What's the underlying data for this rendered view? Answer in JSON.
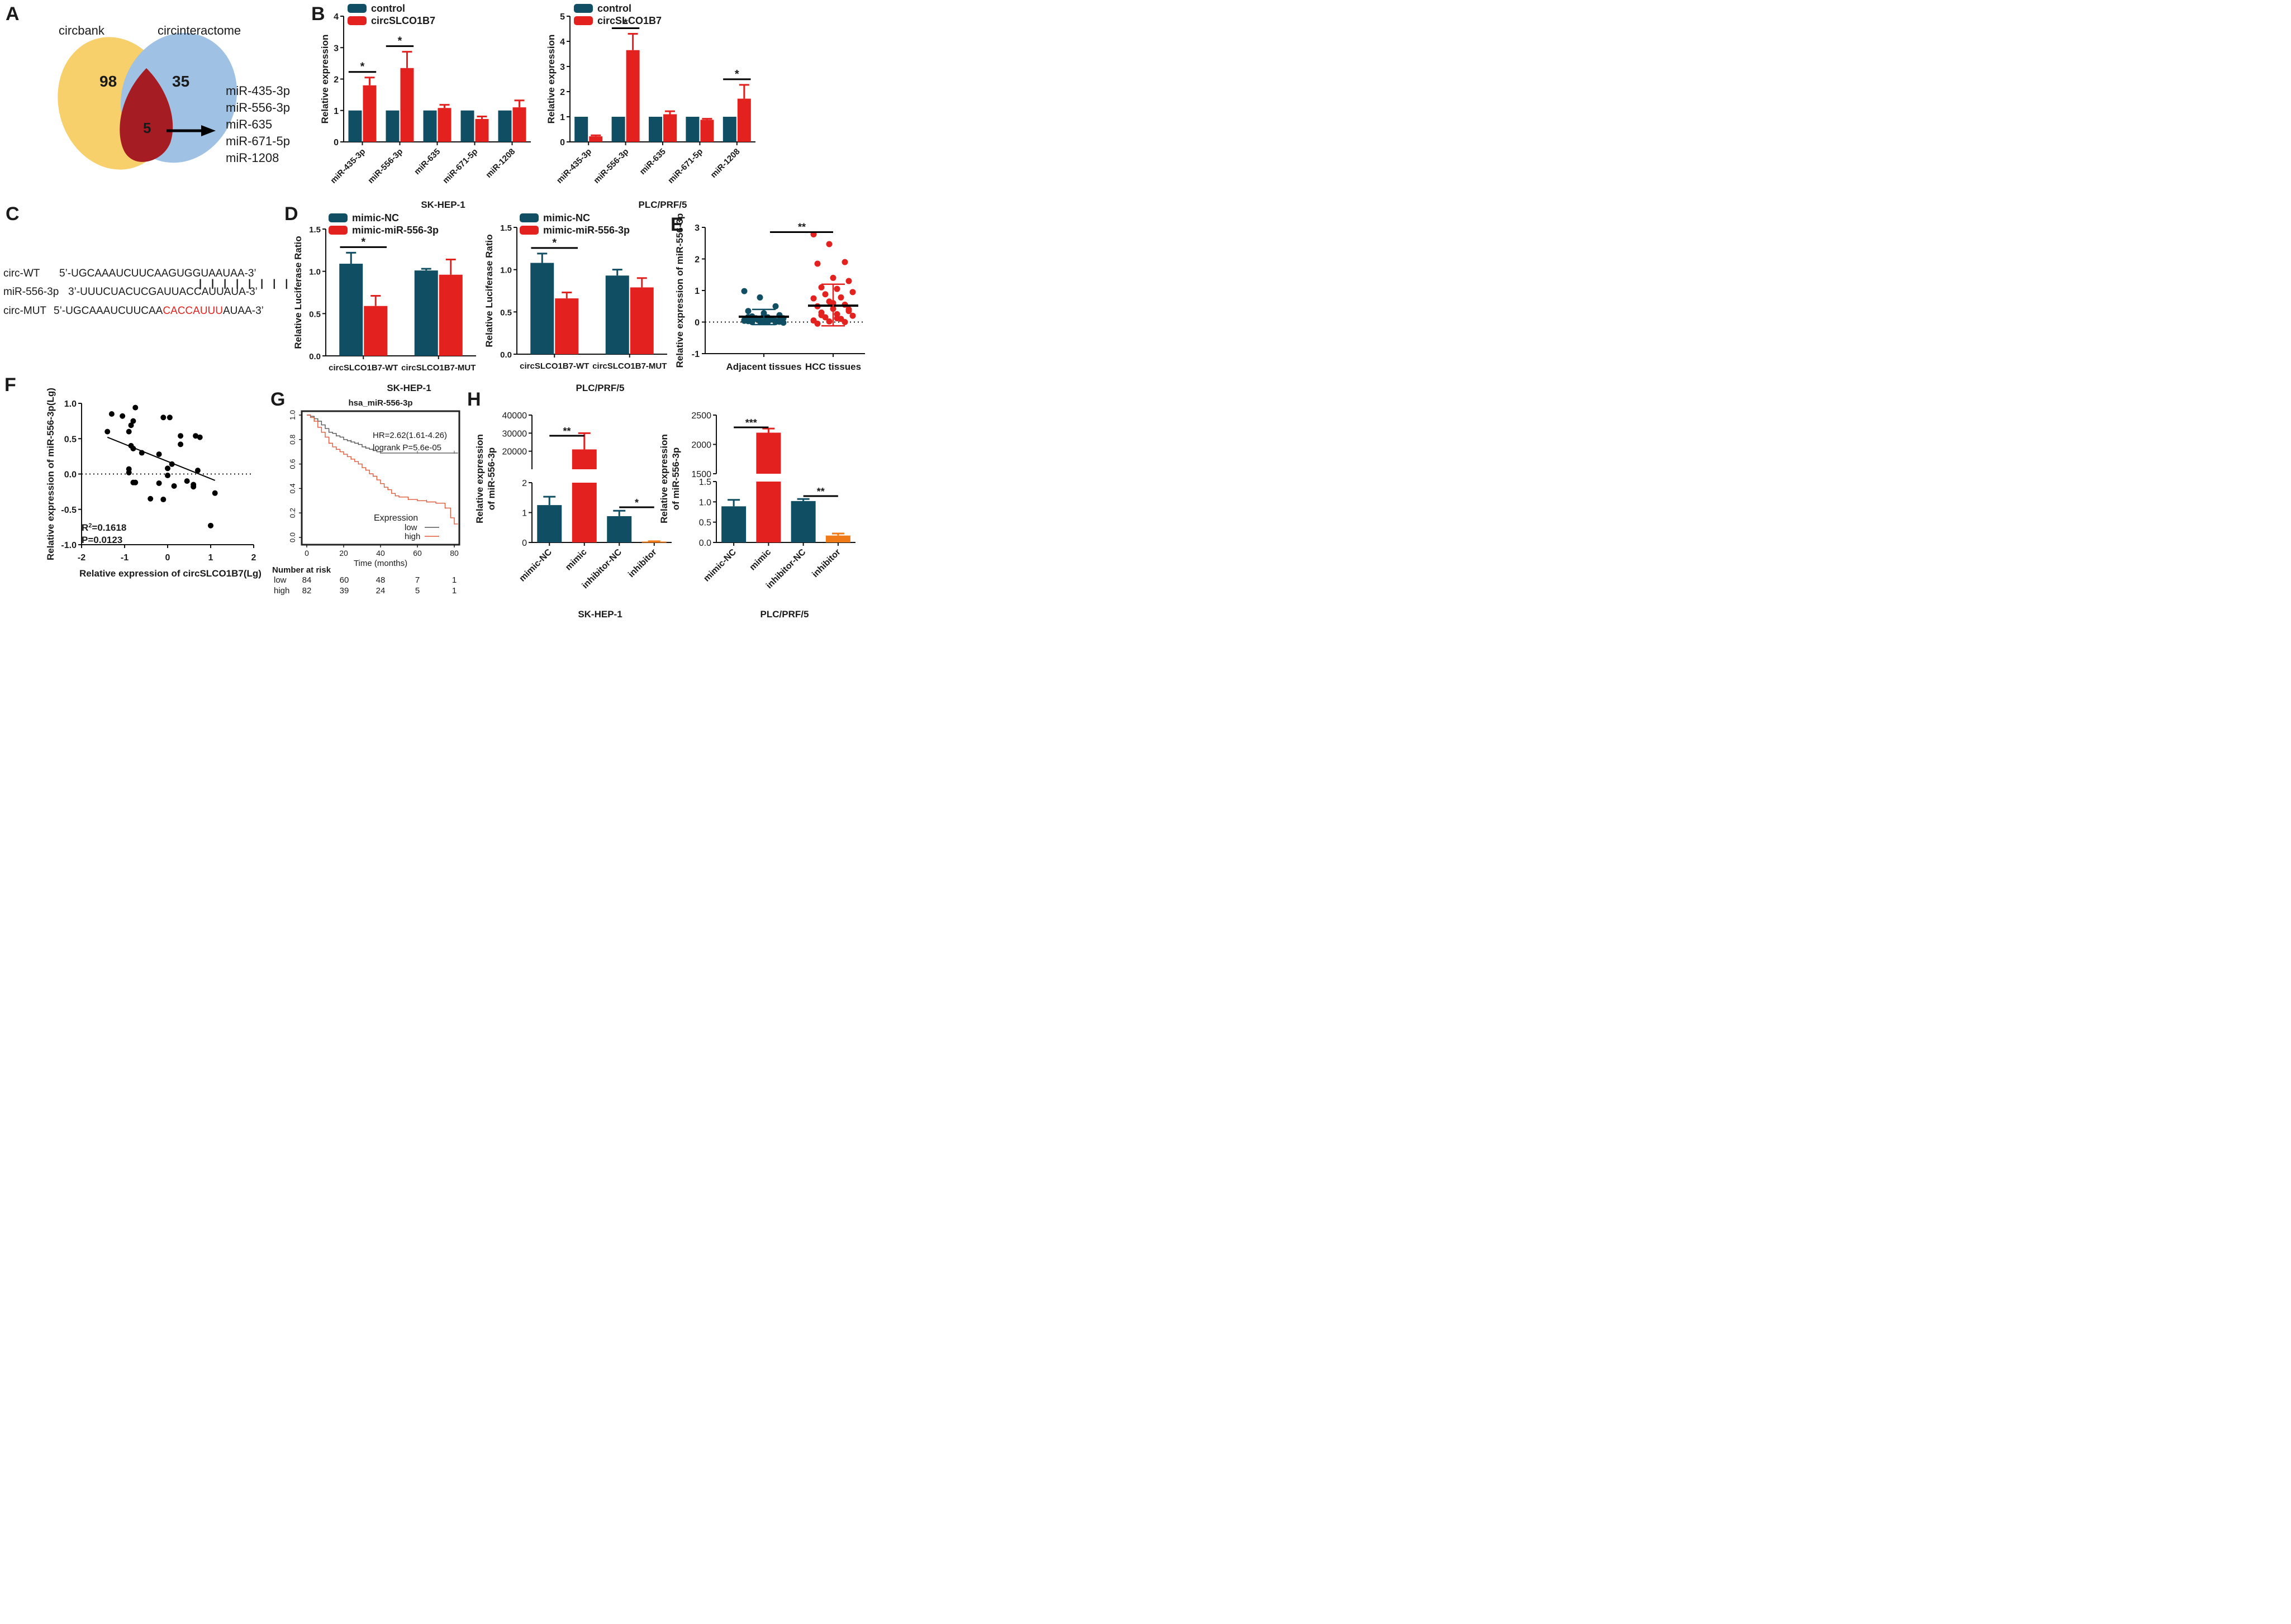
{
  "colors": {
    "teal": "#0f4e63",
    "red": "#e3221f",
    "orange": "#ef7a17",
    "venn_yellow": "#f7cf6b",
    "venn_blue": "#9fc1e3",
    "venn_dark_red": "#a61c23",
    "km_low": "#555555",
    "km_high": "#e0593a",
    "risk_high_text": "#d4621f"
  },
  "panels": {
    "A": {
      "letter": "A",
      "set_left": "circbank",
      "set_right": "circinteractome",
      "count_left": "98",
      "count_right": "35",
      "count_overlap": "5",
      "mirnas": [
        "miR-435-3p",
        "miR-556-3p",
        "miR-635",
        "miR-671-5p",
        "miR-1208"
      ]
    },
    "B": {
      "letter": "B"
    },
    "C": {
      "letter": "C",
      "rows": [
        {
          "label": "circ-WT",
          "seq": "5’-UGCAAAUCUUCAAGUGGUAAUAA-3’"
        },
        {
          "label": "miR-556-3p",
          "seq": "3’-UUUCUACUCGAUUACCAUUAUA-3’"
        },
        {
          "label": "circ-MUT",
          "seq_pre": "5’-UGCAAAUCUUCAA",
          "seq_mut": "CACCAUUU",
          "seq_post": "AUAA-3’"
        }
      ],
      "pairing_marks": "| | | | | | | |"
    },
    "D": {
      "letter": "D"
    },
    "E": {
      "letter": "E"
    },
    "F": {
      "letter": "F",
      "r2_label": "R",
      "r2_sup": "2",
      "r2_value": "=0.1618",
      "p_text": "P=0.0123"
    },
    "G": {
      "letter": "G",
      "hr_text": "HR=2.62(1.61-4.26)",
      "logrank_text": "logrank P=5.6e-05",
      "legend_title": "Expression",
      "legend_low": "low",
      "legend_high": "high",
      "risk_title": "Number at risk",
      "risk_rows": [
        {
          "label": "low",
          "values": [
            "84",
            "60",
            "48",
            "7",
            "1"
          ]
        },
        {
          "label": "high",
          "values": [
            "82",
            "39",
            "24",
            "5",
            "1"
          ]
        }
      ]
    },
    "H": {
      "letter": "H"
    }
  },
  "chart_data": [
    {
      "id": "B-left",
      "type": "bar",
      "title": "SK-HEP-1",
      "xlabel": "",
      "ylabel": "Relative expression",
      "categories": [
        "miR-435-3p",
        "miR-556-3p",
        "miR-635",
        "miR-671-5p",
        "miR-1208"
      ],
      "ylim": [
        0,
        4
      ],
      "yticks": [
        "0",
        "1",
        "2",
        "3",
        "4"
      ],
      "legend": [
        "control",
        "circSLCO1B7"
      ],
      "series": [
        {
          "name": "control",
          "values": [
            1,
            1,
            1,
            1,
            1
          ],
          "errors": [
            0,
            0,
            0,
            0,
            0
          ]
        },
        {
          "name": "circSLCO1B7",
          "values": [
            1.8,
            2.35,
            1.08,
            0.73,
            1.1
          ],
          "errors": [
            0.25,
            0.52,
            0.1,
            0.08,
            0.22
          ]
        }
      ],
      "significance": [
        {
          "label": "*",
          "category": 0
        },
        {
          "label": "*",
          "category": 1
        }
      ]
    },
    {
      "id": "B-right",
      "type": "bar",
      "title": "PLC/PRF/5",
      "xlabel": "",
      "ylabel": "Relative expression",
      "categories": [
        "miR-435-3p",
        "miR-556-3p",
        "miR-635",
        "miR-671-5p",
        "miR-1208"
      ],
      "ylim": [
        0,
        5
      ],
      "yticks": [
        "0",
        "1",
        "2",
        "3",
        "4",
        "5"
      ],
      "legend": [
        "control",
        "circSLCO1B7"
      ],
      "series": [
        {
          "name": "control",
          "values": [
            1,
            1,
            1,
            1,
            1
          ],
          "errors": [
            0,
            0,
            0,
            0,
            0
          ]
        },
        {
          "name": "circSLCO1B7",
          "values": [
            0.22,
            3.65,
            1.1,
            0.88,
            1.72
          ],
          "errors": [
            0.04,
            0.65,
            0.12,
            0.04,
            0.55
          ]
        }
      ],
      "significance": [
        {
          "label": "*",
          "category": 1
        },
        {
          "label": "*",
          "category": 4
        }
      ]
    },
    {
      "id": "D-left",
      "type": "bar",
      "title": "SK-HEP-1",
      "xlabel": "",
      "ylabel": "Relative Luciferase Ratio",
      "categories": [
        "circSLCO1B7-WT",
        "circSLCO1B7-MUT"
      ],
      "ylim": [
        0,
        1.5
      ],
      "yticks": [
        "0.0",
        "0.5",
        "1.0",
        "1.5"
      ],
      "legend": [
        "mimic-NC",
        "mimic-miR-556-3p"
      ],
      "series": [
        {
          "name": "mimic-NC",
          "values": [
            1.09,
            1.01
          ],
          "errors": [
            0.13,
            0.02
          ]
        },
        {
          "name": "mimic-miR-556-3p",
          "values": [
            0.59,
            0.96
          ],
          "errors": [
            0.12,
            0.18
          ]
        }
      ],
      "significance": [
        {
          "label": "*",
          "category": 0
        }
      ]
    },
    {
      "id": "D-right",
      "type": "bar",
      "title": "PLC/PRF/5",
      "xlabel": "",
      "ylabel": "Relative Luciferase Ratio",
      "categories": [
        "circSLCO1B7-WT",
        "circSLCO1B7-MUT"
      ],
      "ylim": [
        0,
        1.5
      ],
      "yticks": [
        "0.0",
        "0.5",
        "1.0",
        "1.5"
      ],
      "legend": [
        "mimic-NC",
        "mimic-miR-556-3p"
      ],
      "series": [
        {
          "name": "mimic-NC",
          "values": [
            1.08,
            0.93
          ],
          "errors": [
            0.11,
            0.07
          ]
        },
        {
          "name": "mimic-miR-556-3p",
          "values": [
            0.66,
            0.79
          ],
          "errors": [
            0.07,
            0.11
          ]
        }
      ],
      "significance": [
        {
          "label": "*",
          "category": 0
        }
      ]
    },
    {
      "id": "E",
      "type": "scatter",
      "xlabel": "",
      "ylabel": "Relative expression of miR-556-3p",
      "categories": [
        "Adjacent tissues",
        "HCC tissues"
      ],
      "ylim": [
        -1,
        3
      ],
      "yticks": [
        "-1",
        "0",
        "1",
        "2",
        "3"
      ],
      "groups": [
        {
          "name": "Adjacent tissues",
          "mean": 0.17,
          "sd_upper": 0.4,
          "sd_lower": -0.08,
          "values": [
            0.98,
            0.78,
            0.5,
            0.35,
            0.28,
            0.22,
            0.18,
            0.15,
            0.12,
            0.1,
            0.08,
            0.06,
            0.05,
            0.04,
            0.03,
            0.02,
            0.01,
            0.0,
            0.0,
            -0.02,
            0.12,
            0.08,
            0.04,
            0.02,
            0.0,
            0.16,
            0.2,
            0.06,
            0.03,
            0.01
          ]
        },
        {
          "name": "HCC tissues",
          "mean": 0.52,
          "sd_upper": 1.2,
          "sd_lower": -0.12,
          "values": [
            2.78,
            2.47,
            1.9,
            1.85,
            1.4,
            1.3,
            1.1,
            1.05,
            0.95,
            0.88,
            0.78,
            0.75,
            0.65,
            0.55,
            0.5,
            0.42,
            0.35,
            0.3,
            0.25,
            0.2,
            0.15,
            0.1,
            0.05,
            0.02,
            0.0,
            -0.05,
            0.6,
            0.4,
            0.22,
            0.12
          ]
        }
      ],
      "significance": [
        {
          "label": "**"
        }
      ]
    },
    {
      "id": "F",
      "type": "scatter",
      "xlabel": "Relative expression of circSLCO1B7(Lg)",
      "ylabel": "Relative expression of miR-556-3p(Lg)",
      "xlim": [
        -2,
        2
      ],
      "ylim": [
        -1,
        1
      ],
      "xticks": [
        "-2",
        "-1",
        "0",
        "1",
        "2"
      ],
      "yticks": [
        "-1.0",
        "-0.5",
        "0.0",
        "0.5",
        "1.0"
      ],
      "points": [
        [
          -1.4,
          0.6
        ],
        [
          -1.3,
          0.85
        ],
        [
          -1.05,
          0.82
        ],
        [
          -0.9,
          0.6
        ],
        [
          -0.85,
          0.69
        ],
        [
          -0.8,
          0.75
        ],
        [
          -0.75,
          0.94
        ],
        [
          -0.85,
          0.4
        ],
        [
          -0.8,
          0.36
        ],
        [
          -0.6,
          0.3
        ],
        [
          -0.9,
          0.07
        ],
        [
          -0.9,
          0.02
        ],
        [
          -0.8,
          -0.12
        ],
        [
          -0.75,
          -0.12
        ],
        [
          -0.4,
          -0.35
        ],
        [
          -0.2,
          0.28
        ],
        [
          -0.1,
          0.8
        ],
        [
          0.05,
          0.8
        ],
        [
          -0.2,
          -0.13
        ],
        [
          -0.1,
          -0.36
        ],
        [
          0.0,
          -0.02
        ],
        [
          0.0,
          0.08
        ],
        [
          0.1,
          0.14
        ],
        [
          0.15,
          -0.17
        ],
        [
          0.3,
          0.42
        ],
        [
          0.3,
          0.54
        ],
        [
          0.45,
          -0.1
        ],
        [
          0.6,
          -0.18
        ],
        [
          0.6,
          -0.15
        ],
        [
          0.65,
          0.54
        ],
        [
          0.75,
          0.52
        ],
        [
          0.7,
          0.05
        ],
        [
          1.1,
          -0.27
        ],
        [
          1.0,
          -0.73
        ]
      ],
      "fit_line": [
        [
          -1.4,
          0.52
        ],
        [
          1.1,
          -0.09
        ]
      ]
    },
    {
      "id": "G",
      "type": "line",
      "title": "hsa_miR-556-3p",
      "xlabel": "Time (months)",
      "ylabel": "",
      "xlim": [
        0,
        82
      ],
      "ylim": [
        0,
        1
      ],
      "xticks": [
        "0",
        "20",
        "40",
        "60",
        "80"
      ],
      "yticks": [
        "0.0",
        "0.2",
        "0.4",
        "0.6",
        "0.8",
        "1.0"
      ],
      "series": [
        {
          "name": "low",
          "x": [
            0,
            2,
            4,
            6,
            8,
            10,
            12,
            14,
            16,
            18,
            20,
            22,
            24,
            26,
            28,
            30,
            32,
            34,
            36,
            38,
            40,
            50,
            60,
            70,
            80,
            82
          ],
          "y": [
            1.0,
            0.99,
            0.97,
            0.95,
            0.92,
            0.89,
            0.86,
            0.85,
            0.83,
            0.82,
            0.8,
            0.79,
            0.78,
            0.77,
            0.76,
            0.74,
            0.73,
            0.72,
            0.71,
            0.7,
            0.69,
            0.69,
            0.69,
            0.69,
            0.69,
            0.69
          ]
        },
        {
          "name": "high",
          "x": [
            0,
            2,
            4,
            6,
            8,
            10,
            12,
            14,
            16,
            18,
            20,
            22,
            24,
            26,
            28,
            30,
            32,
            34,
            36,
            38,
            40,
            42,
            44,
            46,
            48,
            50,
            55,
            60,
            65,
            70,
            75,
            78,
            80,
            82
          ],
          "y": [
            1.0,
            0.98,
            0.95,
            0.9,
            0.86,
            0.82,
            0.77,
            0.74,
            0.72,
            0.7,
            0.68,
            0.66,
            0.64,
            0.62,
            0.6,
            0.57,
            0.55,
            0.52,
            0.5,
            0.47,
            0.44,
            0.41,
            0.39,
            0.36,
            0.34,
            0.33,
            0.31,
            0.3,
            0.29,
            0.28,
            0.24,
            0.16,
            0.11,
            0.11
          ]
        }
      ]
    },
    {
      "id": "H-left",
      "type": "bar",
      "title": "SK-HEP-1",
      "xlabel": "",
      "ylabel": "Relative expression of miR-556-3p",
      "categories": [
        "mimic-NC",
        "mimic",
        "inhibitor-NC",
        "inhibitor"
      ],
      "axis_break": {
        "lower": [
          0,
          2
        ],
        "upper": [
          10000,
          40000
        ]
      },
      "yticks_lower": [
        "0",
        "1",
        "2"
      ],
      "yticks_upper": [
        "20000",
        "30000",
        "40000"
      ],
      "values": [
        1.25,
        21000,
        0.88,
        0.03
      ],
      "errors": [
        0.28,
        9000,
        0.18,
        0.01
      ],
      "colors": [
        "teal",
        "red",
        "teal",
        "orange"
      ],
      "significance": [
        {
          "label": "**",
          "between": [
            0,
            1
          ]
        },
        {
          "label": "*",
          "between": [
            2,
            3
          ]
        }
      ]
    },
    {
      "id": "H-right",
      "type": "bar",
      "title": "PLC/PRF/5",
      "xlabel": "",
      "ylabel": "Relative expression of miR-556-3p",
      "categories": [
        "mimic-NC",
        "mimic",
        "inhibitor-NC",
        "inhibitor"
      ],
      "axis_break": {
        "lower": [
          0,
          1.5
        ],
        "upper": [
          1500,
          2500
        ]
      },
      "yticks_lower": [
        "0.0",
        "0.5",
        "1.0",
        "1.5"
      ],
      "yticks_upper": [
        "1500",
        "2000",
        "2500"
      ],
      "values": [
        0.89,
        2200,
        1.02,
        0.17
      ],
      "errors": [
        0.16,
        70,
        0.05,
        0.05
      ],
      "colors": [
        "teal",
        "red",
        "teal",
        "orange"
      ],
      "significance": [
        {
          "label": "***",
          "between": [
            0,
            1
          ]
        },
        {
          "label": "**",
          "between": [
            2,
            3
          ]
        }
      ]
    }
  ]
}
